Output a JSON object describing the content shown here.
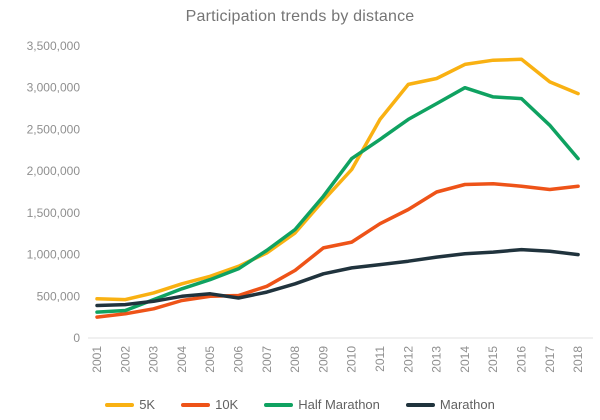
{
  "chart_data": {
    "type": "line",
    "title": "Participation trends by distance",
    "x": [
      2001,
      2002,
      2003,
      2004,
      2005,
      2006,
      2007,
      2008,
      2009,
      2010,
      2011,
      2012,
      2013,
      2014,
      2015,
      2016,
      2017,
      2018
    ],
    "series": [
      {
        "name": "5K",
        "color": "#F9B112",
        "values": [
          470000,
          460000,
          540000,
          650000,
          740000,
          860000,
          1020000,
          1260000,
          1650000,
          2020000,
          2620000,
          3040000,
          3110000,
          3280000,
          3330000,
          3340000,
          3070000,
          2930000
        ]
      },
      {
        "name": "10K",
        "color": "#EE5318",
        "values": [
          250000,
          290000,
          350000,
          450000,
          500000,
          510000,
          620000,
          810000,
          1080000,
          1150000,
          1370000,
          1540000,
          1750000,
          1840000,
          1850000,
          1820000,
          1780000,
          1820000
        ]
      },
      {
        "name": "Half Marathon",
        "color": "#0FA261",
        "values": [
          310000,
          330000,
          460000,
          590000,
          700000,
          830000,
          1050000,
          1300000,
          1700000,
          2150000,
          2380000,
          2620000,
          2810000,
          3000000,
          2890000,
          2870000,
          2550000,
          2150000
        ]
      },
      {
        "name": "Marathon",
        "color": "#20333D",
        "values": [
          390000,
          400000,
          440000,
          500000,
          530000,
          480000,
          550000,
          650000,
          770000,
          840000,
          880000,
          920000,
          970000,
          1010000,
          1030000,
          1060000,
          1040000,
          1000000
        ]
      }
    ],
    "ylim": [
      0,
      3500000
    ],
    "yticks": [
      0,
      500000,
      1000000,
      1500000,
      2000000,
      2500000,
      3000000,
      3500000
    ],
    "xlabel": "",
    "ylabel": "",
    "grid": false,
    "legend_position": "bottom",
    "axis_color": "#E0E0E0",
    "tick_label_color": "#8F8F8F"
  }
}
